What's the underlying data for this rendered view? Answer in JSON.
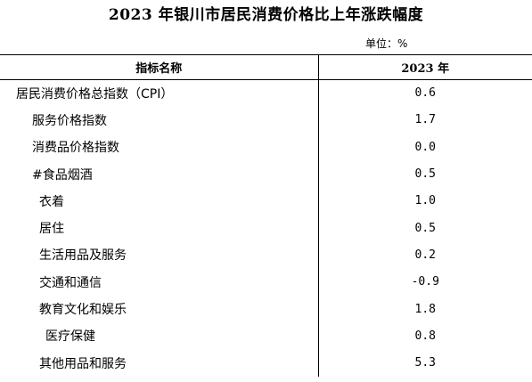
{
  "title": "2023 年银川市居民消费价格比上年涨跌幅度",
  "unit": "单位：%",
  "table": {
    "headers": [
      "指标名称",
      "2023 年"
    ],
    "rows": [
      {
        "name": "居民消费价格总指数（CPI）",
        "value": "0.6",
        "indent": 0
      },
      {
        "name": "服务价格指数",
        "value": "1.7",
        "indent": 1
      },
      {
        "name": "消费品价格指数",
        "value": "0.0",
        "indent": 1
      },
      {
        "name": "#食品烟酒",
        "value": "0.5",
        "indent": 1
      },
      {
        "name": "衣着",
        "value": "1.0",
        "indent": 2
      },
      {
        "name": "居住",
        "value": "0.5",
        "indent": 2
      },
      {
        "name": "生活用品及服务",
        "value": "0.2",
        "indent": 2
      },
      {
        "name": "交通和通信",
        "value": "-0.9",
        "indent": 2
      },
      {
        "name": "教育文化和娱乐",
        "value": "1.8",
        "indent": 2
      },
      {
        "name": "医疗保健",
        "value": "0.8",
        "indent": 3
      },
      {
        "name": "其他用品和服务",
        "value": "5.3",
        "indent": 2
      }
    ]
  }
}
